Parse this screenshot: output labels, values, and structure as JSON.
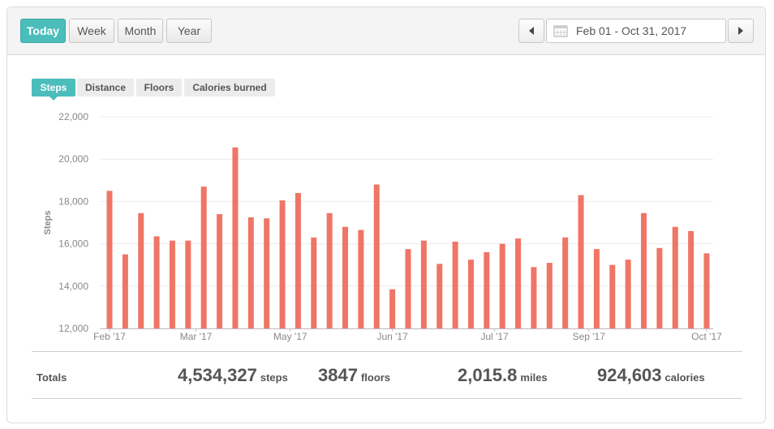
{
  "range_buttons": [
    {
      "label": "Today",
      "active": true
    },
    {
      "label": "Week",
      "active": false
    },
    {
      "label": "Month",
      "active": false
    },
    {
      "label": "Year",
      "active": false
    }
  ],
  "date_range": "Feb 01 - Oct 31, 2017",
  "metric_tabs": [
    {
      "label": "Steps",
      "active": true
    },
    {
      "label": "Distance",
      "active": false
    },
    {
      "label": "Floors",
      "active": false
    },
    {
      "label": "Calories burned",
      "active": false
    }
  ],
  "colors": {
    "accent": "#4bbdbb",
    "bar": "#ef7566",
    "grid": "#ececec",
    "axis_text": "#888888"
  },
  "chart_data": {
    "type": "bar",
    "ylabel": "Steps",
    "ylim": [
      12000,
      22000
    ],
    "y_ticks": [
      "12,000",
      "14,000",
      "16,000",
      "18,000",
      "20,000",
      "22,000"
    ],
    "y_tick_values": [
      12000,
      14000,
      16000,
      18000,
      20000,
      22000
    ],
    "x_ticks": [
      {
        "label": "Feb '17",
        "index": 0
      },
      {
        "label": "Mar '17",
        "index": 5.5
      },
      {
        "label": "May '17",
        "index": 11.5
      },
      {
        "label": "Jun '17",
        "index": 18
      },
      {
        "label": "Jul '17",
        "index": 24.5
      },
      {
        "label": "Sep '17",
        "index": 30.5
      },
      {
        "label": "Oct '17",
        "index": 38
      }
    ],
    "values": [
      18500,
      15500,
      17450,
      16350,
      16150,
      16150,
      18700,
      17400,
      20550,
      17250,
      17200,
      18050,
      18400,
      16300,
      17450,
      16800,
      16650,
      18800,
      13850,
      15750,
      16150,
      15050,
      16100,
      15250,
      15600,
      16000,
      16250,
      14900,
      15100,
      16300,
      18300,
      15750,
      15000,
      15250,
      17450,
      15800,
      16800,
      16600,
      15550
    ],
    "grid": true
  },
  "totals": {
    "label": "Totals",
    "steps": {
      "value": "4,534,327",
      "unit": "steps"
    },
    "floors": {
      "value": "3847",
      "unit": "floors"
    },
    "miles": {
      "value": "2,015.8",
      "unit": "miles"
    },
    "calories": {
      "value": "924,603",
      "unit": "calories"
    }
  }
}
